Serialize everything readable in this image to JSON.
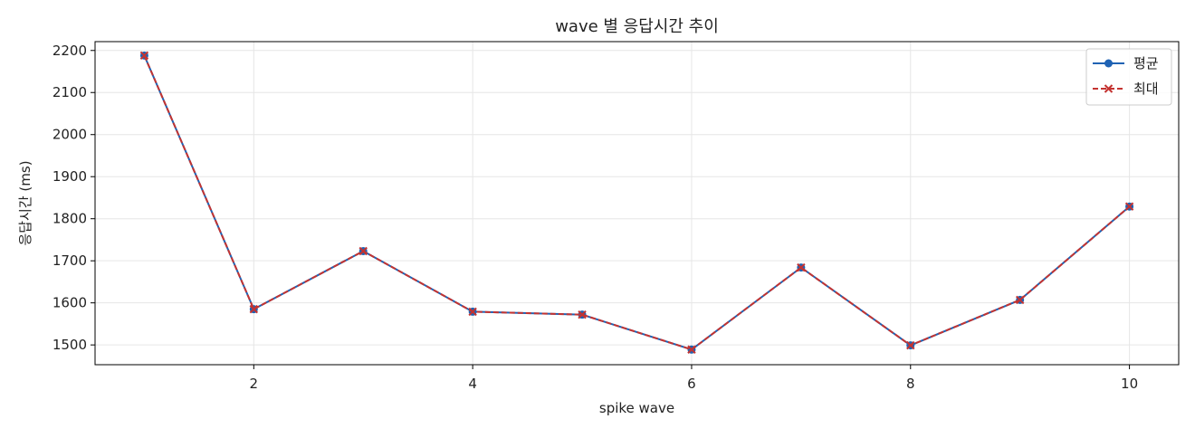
{
  "chart_data": {
    "type": "line",
    "title": "wave 별 응답시간 추이",
    "xlabel": "spike wave",
    "ylabel": "응답시간 (ms)",
    "x": [
      1,
      2,
      3,
      4,
      5,
      6,
      7,
      8,
      9,
      10
    ],
    "xlim": [
      0.55,
      10.45
    ],
    "ylim": [
      1453,
      2221
    ],
    "x_ticks": [
      2,
      4,
      6,
      8,
      10
    ],
    "y_ticks": [
      1500,
      1600,
      1700,
      1800,
      1900,
      2000,
      2100,
      2200
    ],
    "grid": true,
    "legend_position": "top-right",
    "series": [
      {
        "name": "평균",
        "values": [
          2188,
          1585,
          1723,
          1579,
          1572,
          1489,
          1684,
          1499,
          1607,
          1829
        ],
        "color": "#1f63b4",
        "line_style": "solid",
        "marker": "circle"
      },
      {
        "name": "최대",
        "values": [
          2188,
          1585,
          1723,
          1579,
          1572,
          1489,
          1684,
          1499,
          1607,
          1829
        ],
        "color": "#c43331",
        "line_style": "dashed",
        "marker": "x"
      }
    ]
  }
}
